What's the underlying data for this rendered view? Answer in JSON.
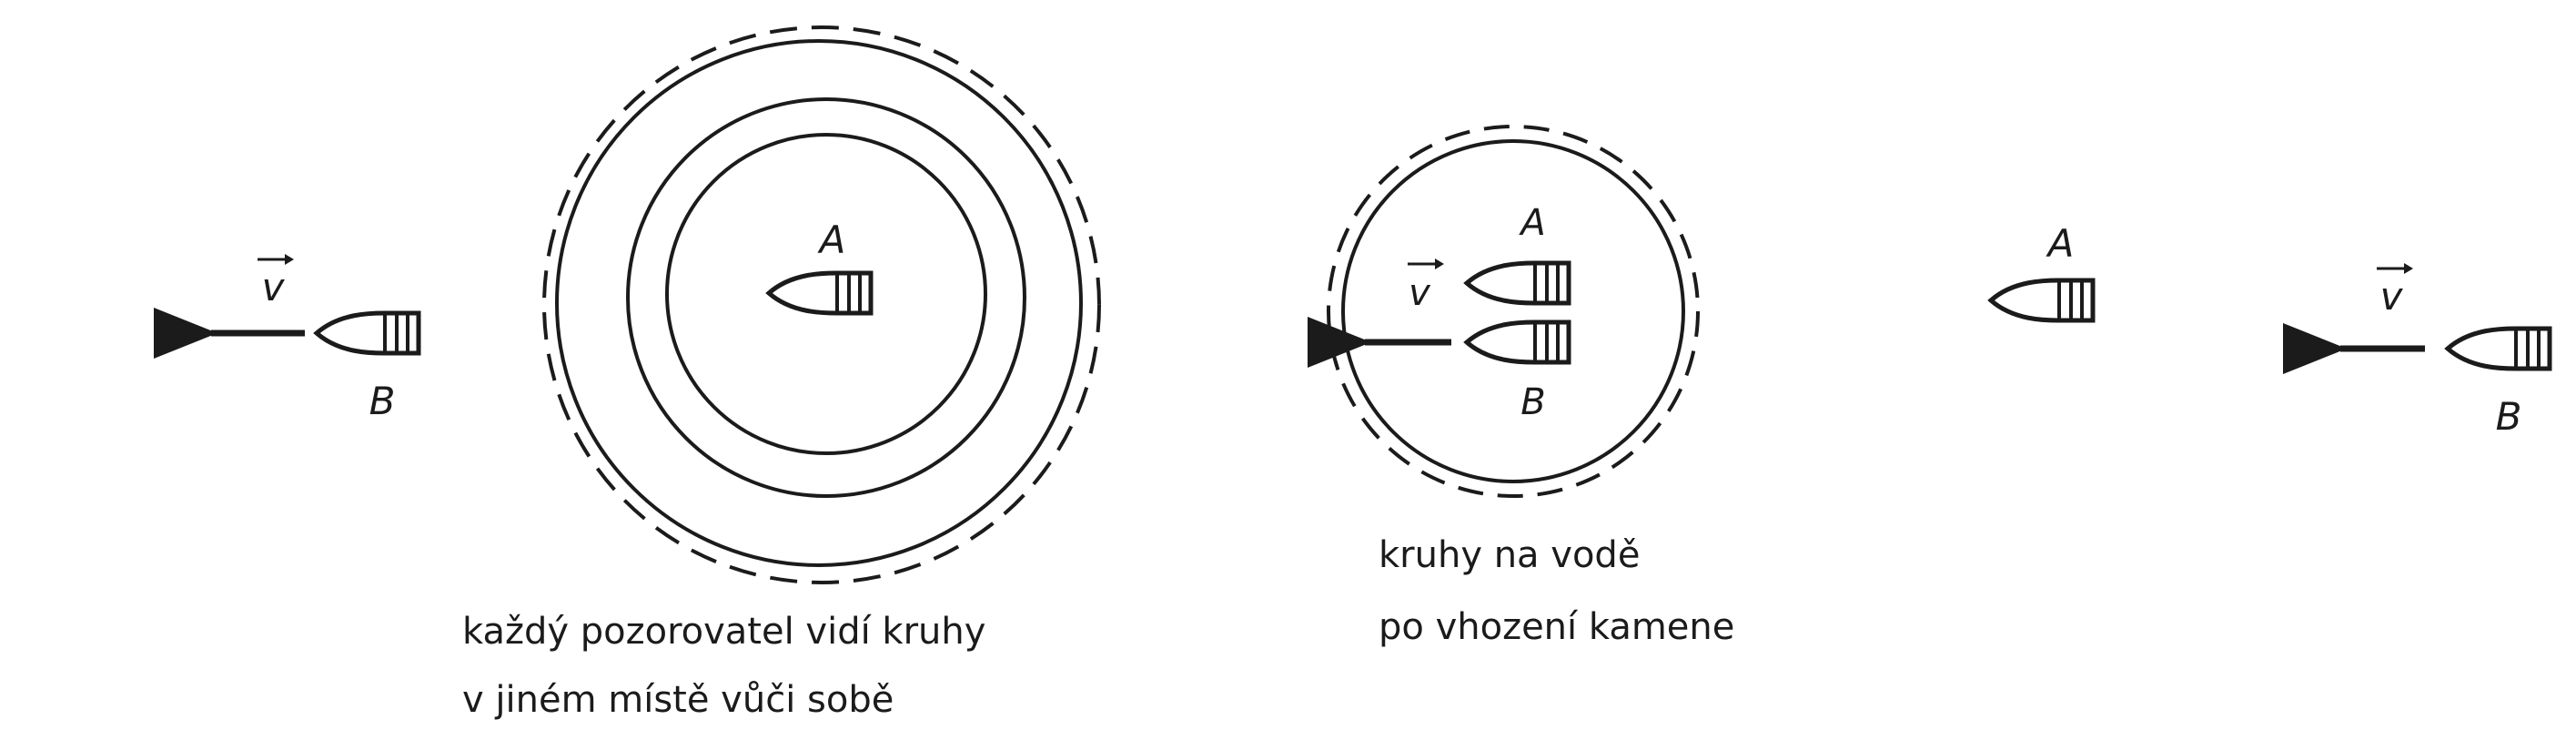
{
  "figure": {
    "panel_left": {
      "velocity_label": "v",
      "boat_a_label": "A",
      "boat_b_label": "B",
      "caption_line1": "každý pozorovatel vidí kruhy",
      "caption_line2": "v jiném místě vůči sobě"
    },
    "panel_middle": {
      "velocity_label": "v",
      "boat_a_label": "A",
      "boat_b_label": "B",
      "caption_line1": "kruhy na vodě",
      "caption_line2": "po vhození kamene"
    },
    "panel_right": {
      "velocity_label": "v",
      "boat_a_label": "A",
      "boat_b_label": "B"
    }
  },
  "colors": {
    "ink": "#1b1b1b",
    "background": "#ffffff"
  }
}
